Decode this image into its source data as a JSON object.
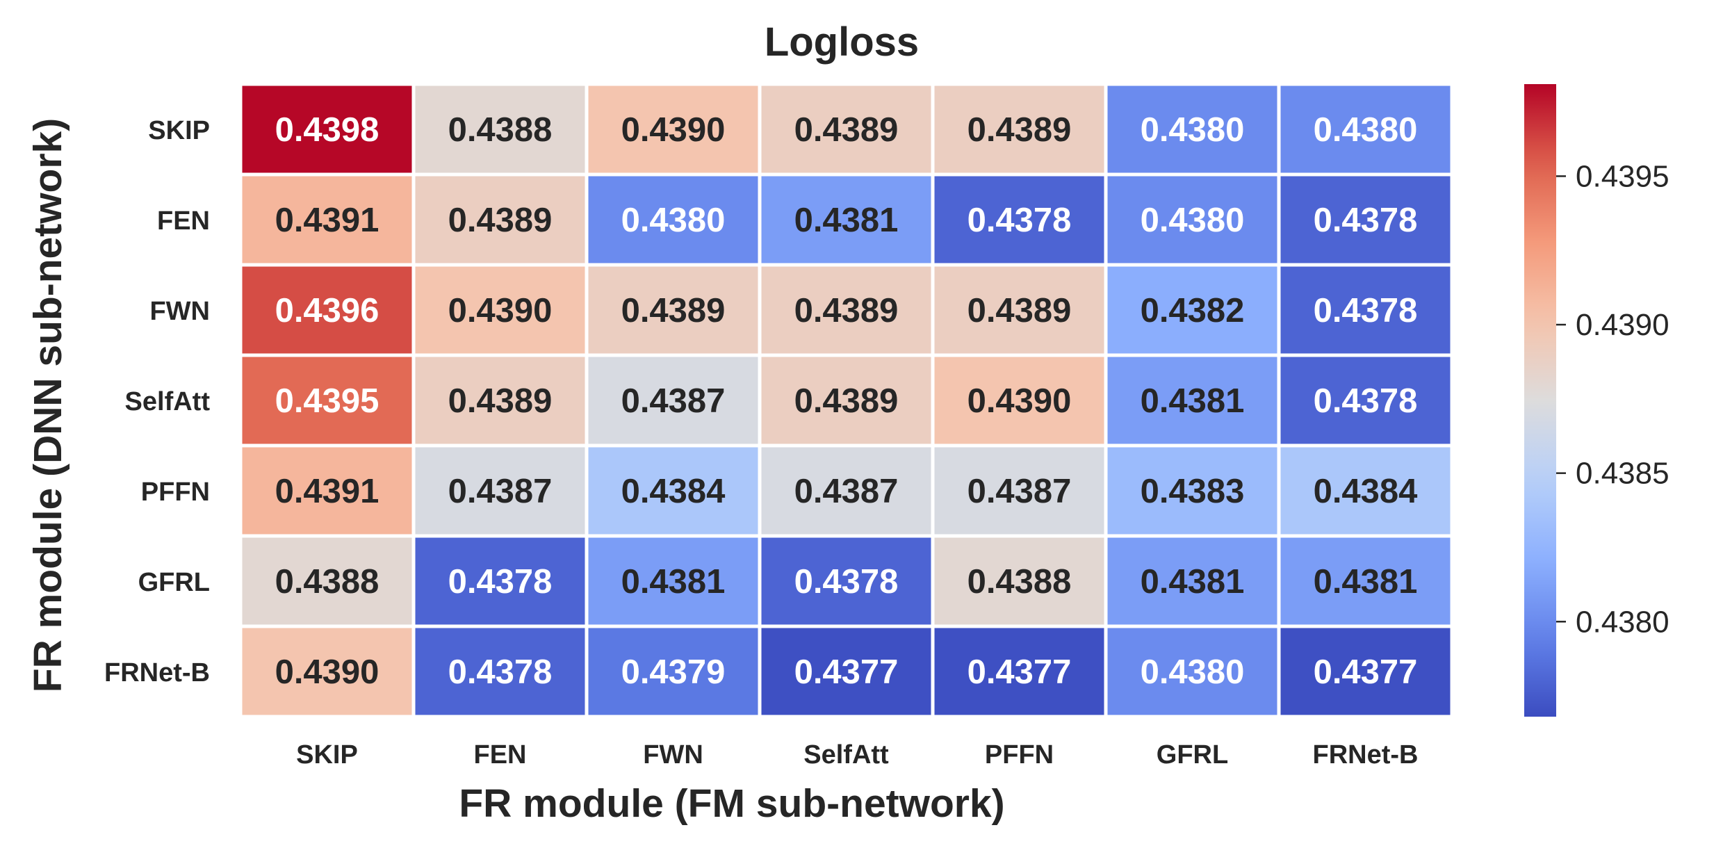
{
  "chart_data": {
    "type": "heatmap",
    "title": "Logloss",
    "xlabel": "FR module (FM sub-network)",
    "ylabel": "FR module (DNN sub-network)",
    "x_categories": [
      "SKIP",
      "FEN",
      "FWN",
      "SelfAtt",
      "PFFN",
      "GFRL",
      "FRNet-B"
    ],
    "y_categories": [
      "SKIP",
      "FEN",
      "FWN",
      "SelfAtt",
      "PFFN",
      "GFRL",
      "FRNet-B"
    ],
    "values": [
      [
        0.4398,
        0.4388,
        0.439,
        0.4389,
        0.4389,
        0.438,
        0.438
      ],
      [
        0.4391,
        0.4389,
        0.438,
        0.4381,
        0.4378,
        0.438,
        0.4378
      ],
      [
        0.4396,
        0.439,
        0.4389,
        0.4389,
        0.4389,
        0.4382,
        0.4378
      ],
      [
        0.4395,
        0.4389,
        0.4387,
        0.4389,
        0.439,
        0.4381,
        0.4378
      ],
      [
        0.4391,
        0.4387,
        0.4384,
        0.4387,
        0.4387,
        0.4383,
        0.4384
      ],
      [
        0.4388,
        0.4378,
        0.4381,
        0.4378,
        0.4388,
        0.4381,
        0.4381
      ],
      [
        0.439,
        0.4378,
        0.4379,
        0.4377,
        0.4377,
        0.438,
        0.4377
      ]
    ],
    "colormap": "coolwarm",
    "color_range": [
      0.43768,
      0.43981
    ],
    "colorbar": {
      "ticks": [
        0.438,
        0.4385,
        0.439,
        0.4395
      ],
      "tick_labels": [
        "0.4380",
        "0.4385",
        "0.4390",
        "0.4395"
      ]
    },
    "annotation_format": "4 decimals",
    "text_colors": {
      "dark": "#262626",
      "light": "#ffffff"
    }
  }
}
